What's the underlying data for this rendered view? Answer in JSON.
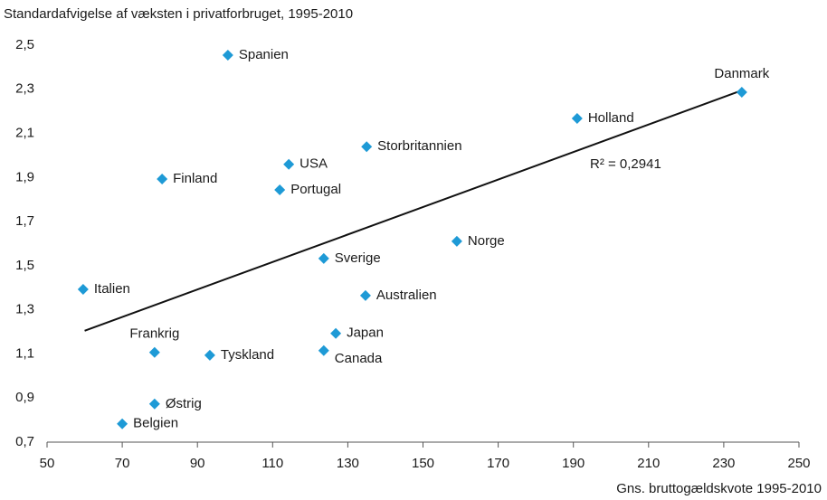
{
  "chart_data": {
    "type": "scatter",
    "y_label": "Standardafvigelse af væksten i privatforbruget, 1995-2010",
    "x_label": "Gns. bruttogældskvote 1995-2010",
    "labels": [
      "Spanien",
      "Danmark",
      "Holland",
      "Storbritannien",
      "USA",
      "Finland",
      "Portugal",
      "Norge",
      "Sverige",
      "Italien",
      "Australien",
      "Japan",
      "Frankrig",
      "Tyskland",
      "Canada",
      "Østrig",
      "Belgien"
    ],
    "x": [
      98.1,
      234.8,
      191,
      135,
      114.3,
      80.6,
      111.9,
      159,
      123.6,
      59.6,
      134.7,
      126.8,
      78.6,
      93.3,
      123.6,
      78.6,
      70
    ],
    "y": [
      2.455,
      2.287,
      2.168,
      2.04,
      1.96,
      1.893,
      1.844,
      1.611,
      1.533,
      1.393,
      1.365,
      1.193,
      1.107,
      1.094,
      1.115,
      0.873,
      0.783
    ],
    "color": "#1e9ad6",
    "trendline": {
      "x": [
        60,
        234
      ],
      "y": [
        1.205,
        2.29
      ]
    },
    "annotation": "R² = 0,2941",
    "xlim": [
      50,
      250
    ],
    "xticks": [
      50,
      70,
      90,
      110,
      130,
      150,
      170,
      190,
      210,
      230,
      250
    ],
    "ylim": [
      0.7,
      2.5
    ],
    "yticks": [
      {
        "value": 0.7,
        "label": "0,7"
      },
      {
        "value": 0.9,
        "label": "0,9"
      },
      {
        "value": 1.1,
        "label": "1,1"
      },
      {
        "value": 1.3,
        "label": "1,3"
      },
      {
        "value": 1.5,
        "label": "1,5"
      },
      {
        "value": 1.7,
        "label": "1,7"
      },
      {
        "value": 1.9,
        "label": "1,9"
      },
      {
        "value": 2.1,
        "label": "2,1"
      },
      {
        "value": 2.3,
        "label": "2,3"
      },
      {
        "value": 2.5,
        "label": "2,5"
      }
    ]
  }
}
